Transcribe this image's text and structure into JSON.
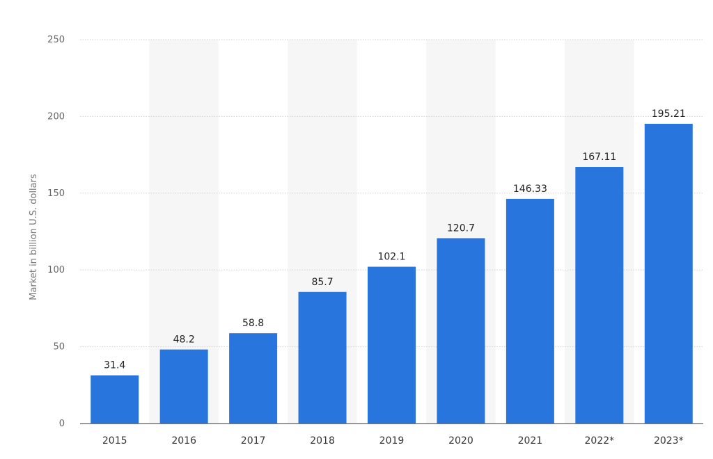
{
  "chart_data": {
    "type": "bar",
    "categories": [
      "2015",
      "2016",
      "2017",
      "2018",
      "2019",
      "2020",
      "2021",
      "2022*",
      "2023*"
    ],
    "values": [
      31.4,
      48.2,
      58.8,
      85.7,
      102.1,
      120.7,
      146.33,
      167.11,
      195.21
    ],
    "value_labels": [
      "31.4",
      "48.2",
      "58.8",
      "85.7",
      "102.1",
      "120.7",
      "146.33",
      "167.11",
      "195.21"
    ],
    "ylabel": "Market in billion U.S. dollars",
    "xlabel": "",
    "ylim": [
      0,
      250
    ],
    "yticks": [
      0,
      50,
      100,
      150,
      200,
      250
    ],
    "ytick_labels": [
      "0",
      "50",
      "100",
      "150",
      "200",
      "250"
    ],
    "grid": true,
    "bar_color": "#2876dd",
    "band_color": "#f6f6f6",
    "grid_color": "#d0d0d0"
  }
}
